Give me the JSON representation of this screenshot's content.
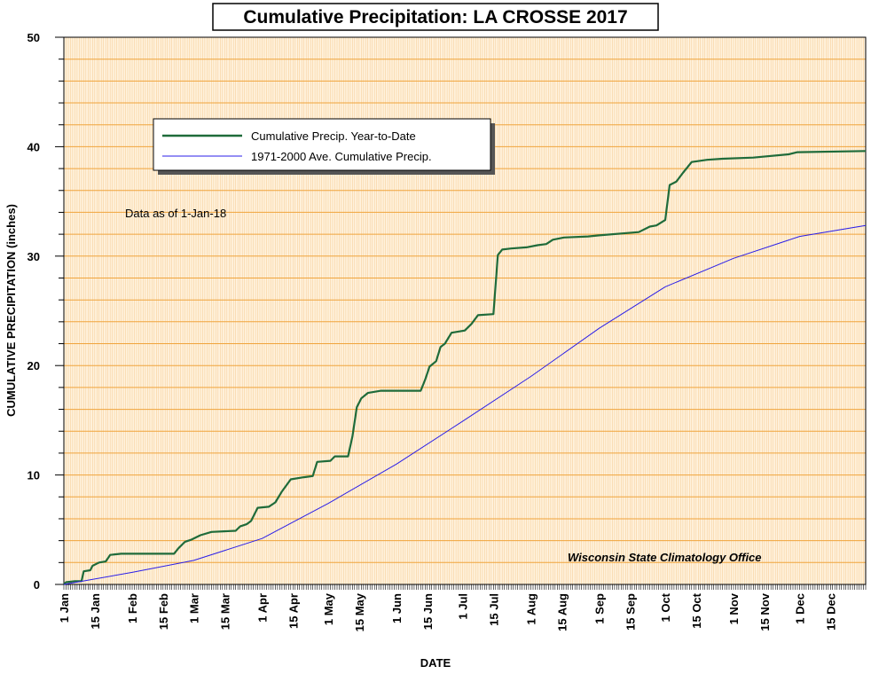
{
  "chart_data": {
    "type": "line",
    "title": "Cumulative Precipitation: LA CROSSE 2017",
    "xlabel": "DATE",
    "ylabel": "CUMULATIVE PRECIPITATION (inches)",
    "ylim": [
      0,
      50
    ],
    "xlim": [
      "1 Jan",
      "31 Dec"
    ],
    "yticks": [
      0,
      10,
      20,
      30,
      40,
      50
    ],
    "xtick_labels": [
      "1 Jan",
      "15 Jan",
      "1 Feb",
      "15 Feb",
      "1 Mar",
      "15 Mar",
      "1 Apr",
      "15 Apr",
      "1 May",
      "15 May",
      "1 Jun",
      "15 Jun",
      "1 Jul",
      "15 Jul",
      "1 Aug",
      "15 Aug",
      "1 Sep",
      "15 Sep",
      "1 Oct",
      "15 Oct",
      "1 Nov",
      "15 Nov",
      "1 Dec",
      "15 Dec"
    ],
    "grid": true,
    "legend_position": "upper-left",
    "annotations": [
      "Data as of 1-Jan-18",
      "Wisconsin State Climatology Office"
    ],
    "series": [
      {
        "name": "Cumulative Precip. Year-to-Date",
        "color": "#1f6b3a",
        "points": [
          [
            "1 Jan",
            0
          ],
          [
            "2 Jan",
            0.2
          ],
          [
            "6 Jan",
            0.3
          ],
          [
            "9 Jan",
            0.3
          ],
          [
            "10 Jan",
            1.2
          ],
          [
            "13 Jan",
            1.3
          ],
          [
            "14 Jan",
            1.7
          ],
          [
            "17 Jan",
            2.0
          ],
          [
            "20 Jan",
            2.1
          ],
          [
            "22 Jan",
            2.7
          ],
          [
            "27 Jan",
            2.8
          ],
          [
            "20 Feb",
            2.8
          ],
          [
            "22 Feb",
            3.3
          ],
          [
            "25 Feb",
            3.9
          ],
          [
            "28 Feb",
            4.1
          ],
          [
            "4 Mar",
            4.5
          ],
          [
            "9 Mar",
            4.8
          ],
          [
            "20 Mar",
            4.9
          ],
          [
            "22 Mar",
            5.3
          ],
          [
            "25 Mar",
            5.5
          ],
          [
            "27 Mar",
            5.8
          ],
          [
            "30 Mar",
            7.0
          ],
          [
            "4 Apr",
            7.1
          ],
          [
            "7 Apr",
            7.5
          ],
          [
            "10 Apr",
            8.5
          ],
          [
            "14 Apr",
            9.6
          ],
          [
            "20 Apr",
            9.8
          ],
          [
            "24 Apr",
            9.9
          ],
          [
            "26 Apr",
            11.2
          ],
          [
            "2 May",
            11.3
          ],
          [
            "4 May",
            11.7
          ],
          [
            "10 May",
            11.7
          ],
          [
            "12 May",
            13.5
          ],
          [
            "14 May",
            16.2
          ],
          [
            "16 May",
            17.0
          ],
          [
            "19 May",
            17.5
          ],
          [
            "25 May",
            17.7
          ],
          [
            "12 Jun",
            17.7
          ],
          [
            "14 Jun",
            18.7
          ],
          [
            "16 Jun",
            19.9
          ],
          [
            "19 Jun",
            20.4
          ],
          [
            "21 Jun",
            21.7
          ],
          [
            "23 Jun",
            22.0
          ],
          [
            "26 Jun",
            23.0
          ],
          [
            "2 Jul",
            23.2
          ],
          [
            "5 Jul",
            23.8
          ],
          [
            "8 Jul",
            24.6
          ],
          [
            "15 Jul",
            24.7
          ],
          [
            "17 Jul",
            30.1
          ],
          [
            "19 Jul",
            30.6
          ],
          [
            "23 Jul",
            30.7
          ],
          [
            "30 Jul",
            30.8
          ],
          [
            "4 Aug",
            31.0
          ],
          [
            "8 Aug",
            31.1
          ],
          [
            "11 Aug",
            31.5
          ],
          [
            "16 Aug",
            31.7
          ],
          [
            "27 Aug",
            31.8
          ],
          [
            "1 Sep",
            31.9
          ],
          [
            "19 Sep",
            32.2
          ],
          [
            "24 Sep",
            32.7
          ],
          [
            "27 Sep",
            32.8
          ],
          [
            "1 Oct",
            33.3
          ],
          [
            "3 Oct",
            36.5
          ],
          [
            "6 Oct",
            36.8
          ],
          [
            "9 Oct",
            37.6
          ],
          [
            "13 Oct",
            38.6
          ],
          [
            "20 Oct",
            38.8
          ],
          [
            "27 Oct",
            38.9
          ],
          [
            "10 Nov",
            39.0
          ],
          [
            "26 Nov",
            39.3
          ],
          [
            "30 Nov",
            39.5
          ],
          [
            "31 Dec",
            39.6
          ]
        ]
      },
      {
        "name": "1971-2000 Ave. Cumulative Precip.",
        "color": "#2a1ee8",
        "points": [
          [
            "1 Jan",
            0
          ],
          [
            "1 Feb",
            1.1
          ],
          [
            "1 Mar",
            2.2
          ],
          [
            "1 Apr",
            4.2
          ],
          [
            "1 May",
            7.4
          ],
          [
            "1 Jun",
            11.0
          ],
          [
            "1 Jul",
            14.9
          ],
          [
            "1 Aug",
            19.0
          ],
          [
            "1 Sep",
            23.4
          ],
          [
            "1 Oct",
            27.2
          ],
          [
            "1 Nov",
            29.8
          ],
          [
            "1 Dec",
            31.8
          ],
          [
            "31 Dec",
            32.8
          ]
        ]
      }
    ]
  }
}
